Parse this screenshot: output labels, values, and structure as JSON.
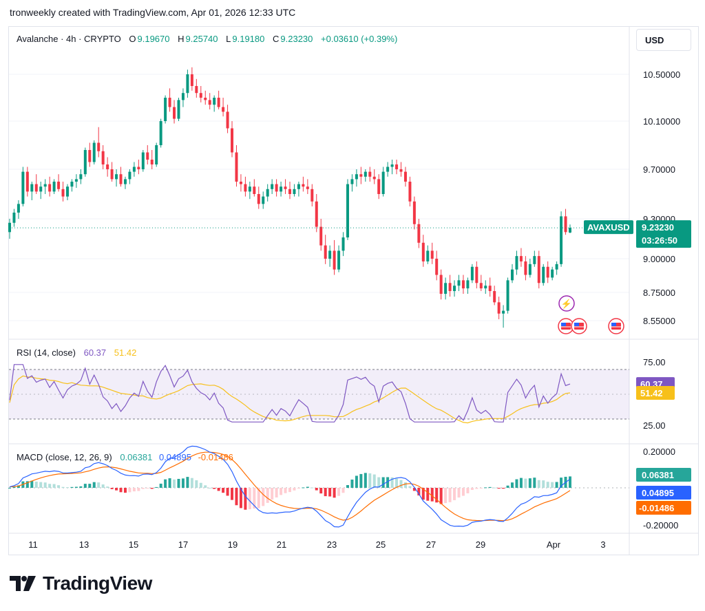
{
  "header": {
    "credit": "tronweekly created with TradingView.com, Apr 01, 2026 12:33 UTC"
  },
  "currency_button": "USD",
  "legend": {
    "symbol": "Avalanche · 4h · CRYPTO",
    "o_label": "O",
    "o": "9.19670",
    "h_label": "H",
    "h": "9.25740",
    "l_label": "L",
    "l": "9.19180",
    "c_label": "C",
    "c": "9.23230",
    "change": "+0.03610 (+0.39%)"
  },
  "rsi_legend": {
    "title": "RSI (14, close)",
    "rsi": "60.37",
    "ma": "51.42"
  },
  "macd_legend": {
    "title": "MACD (close, 12, 26, 9)",
    "hist": "0.06381",
    "macd": "0.04895",
    "signal": "-0.01486"
  },
  "price_tag": {
    "symbol": "AVAXUSD",
    "price": "9.23230",
    "countdown": "03:26:50"
  },
  "footer": {
    "brand": "TradingView"
  },
  "colors": {
    "up": "#089981",
    "down": "#f23645",
    "rsi": "#7e57c2",
    "rsi_ma": "#f7c01a",
    "macd": "#2962ff",
    "signal": "#ff6d00",
    "hist_up": "#26a69a",
    "hist_down": "#f23645",
    "hist_up_light": "#b2dfdb",
    "hist_down_light": "#ffcdd2"
  },
  "chart_data": {
    "type": "candlestick",
    "price_axis": {
      "ticks": [
        "10.50000",
        "10.10000",
        "9.70000",
        "9.30000",
        "9.00000",
        "8.75000",
        "8.55000"
      ],
      "tick_values": [
        10.5,
        10.1,
        9.7,
        9.3,
        9.0,
        8.75,
        8.55
      ]
    },
    "x_ticks": [
      "11",
      "13",
      "15",
      "17",
      "19",
      "21",
      "23",
      "25",
      "27",
      "29",
      "Apr",
      "3"
    ],
    "candles_ohlc": [
      [
        9.2,
        9.3,
        9.15,
        9.27
      ],
      [
        9.27,
        9.38,
        9.24,
        9.35
      ],
      [
        9.35,
        9.45,
        9.3,
        9.42
      ],
      [
        9.42,
        9.72,
        9.4,
        9.68
      ],
      [
        9.68,
        9.72,
        9.48,
        9.52
      ],
      [
        9.52,
        9.6,
        9.45,
        9.58
      ],
      [
        9.58,
        9.66,
        9.5,
        9.52
      ],
      [
        9.52,
        9.6,
        9.46,
        9.56
      ],
      [
        9.56,
        9.62,
        9.5,
        9.58
      ],
      [
        9.58,
        9.64,
        9.48,
        9.52
      ],
      [
        9.52,
        9.62,
        9.5,
        9.6
      ],
      [
        9.6,
        9.66,
        9.52,
        9.54
      ],
      [
        9.54,
        9.6,
        9.44,
        9.48
      ],
      [
        9.48,
        9.58,
        9.45,
        9.56
      ],
      [
        9.56,
        9.62,
        9.52,
        9.6
      ],
      [
        9.6,
        9.66,
        9.55,
        9.62
      ],
      [
        9.62,
        9.7,
        9.58,
        9.66
      ],
      [
        9.66,
        9.88,
        9.64,
        9.86
      ],
      [
        9.86,
        9.92,
        9.72,
        9.76
      ],
      [
        9.76,
        9.94,
        9.74,
        9.92
      ],
      [
        9.92,
        10.05,
        9.8,
        9.85
      ],
      [
        9.85,
        9.9,
        9.7,
        9.74
      ],
      [
        9.74,
        9.8,
        9.64,
        9.7
      ],
      [
        9.7,
        9.76,
        9.6,
        9.62
      ],
      [
        9.62,
        9.7,
        9.56,
        9.66
      ],
      [
        9.66,
        9.72,
        9.56,
        9.58
      ],
      [
        9.58,
        9.64,
        9.54,
        9.62
      ],
      [
        9.62,
        9.7,
        9.58,
        9.68
      ],
      [
        9.68,
        9.76,
        9.64,
        9.72
      ],
      [
        9.72,
        9.78,
        9.66,
        9.7
      ],
      [
        9.7,
        9.86,
        9.68,
        9.84
      ],
      [
        9.84,
        9.9,
        9.74,
        9.78
      ],
      [
        9.78,
        9.86,
        9.7,
        9.74
      ],
      [
        9.74,
        9.92,
        9.72,
        9.9
      ],
      [
        9.9,
        10.12,
        9.88,
        10.1
      ],
      [
        10.1,
        10.32,
        10.08,
        10.3
      ],
      [
        10.3,
        10.38,
        10.18,
        10.22
      ],
      [
        10.22,
        10.28,
        10.08,
        10.12
      ],
      [
        10.12,
        10.3,
        10.1,
        10.28
      ],
      [
        10.28,
        10.38,
        10.22,
        10.34
      ],
      [
        10.34,
        10.54,
        10.3,
        10.5
      ],
      [
        10.5,
        10.56,
        10.36,
        10.4
      ],
      [
        10.4,
        10.46,
        10.3,
        10.34
      ],
      [
        10.34,
        10.4,
        10.26,
        10.3
      ],
      [
        10.3,
        10.36,
        10.24,
        10.28
      ],
      [
        10.28,
        10.34,
        10.2,
        10.24
      ],
      [
        10.24,
        10.32,
        10.18,
        10.3
      ],
      [
        10.3,
        10.36,
        10.2,
        10.22
      ],
      [
        10.22,
        10.3,
        10.14,
        10.18
      ],
      [
        10.18,
        10.24,
        10.0,
        10.04
      ],
      [
        10.04,
        10.1,
        9.8,
        9.84
      ],
      [
        9.84,
        9.9,
        9.56,
        9.6
      ],
      [
        9.6,
        9.66,
        9.52,
        9.58
      ],
      [
        9.58,
        9.64,
        9.48,
        9.52
      ],
      [
        9.52,
        9.6,
        9.46,
        9.56
      ],
      [
        9.56,
        9.62,
        9.48,
        9.5
      ],
      [
        9.5,
        9.56,
        9.38,
        9.42
      ],
      [
        9.42,
        9.52,
        9.38,
        9.48
      ],
      [
        9.48,
        9.58,
        9.44,
        9.54
      ],
      [
        9.54,
        9.62,
        9.5,
        9.58
      ],
      [
        9.58,
        9.62,
        9.48,
        9.52
      ],
      [
        9.52,
        9.6,
        9.48,
        9.56
      ],
      [
        9.56,
        9.62,
        9.5,
        9.54
      ],
      [
        9.54,
        9.6,
        9.46,
        9.5
      ],
      [
        9.5,
        9.58,
        9.48,
        9.54
      ],
      [
        9.54,
        9.6,
        9.48,
        9.58
      ],
      [
        9.58,
        9.64,
        9.52,
        9.56
      ],
      [
        9.56,
        9.62,
        9.5,
        9.54
      ],
      [
        9.54,
        9.58,
        9.4,
        9.44
      ],
      [
        9.44,
        9.5,
        9.2,
        9.24
      ],
      [
        9.24,
        9.3,
        9.06,
        9.1
      ],
      [
        9.1,
        9.18,
        8.96,
        9.0
      ],
      [
        9.0,
        9.1,
        8.94,
        9.06
      ],
      [
        9.06,
        9.14,
        8.88,
        8.92
      ],
      [
        8.92,
        9.1,
        8.9,
        9.06
      ],
      [
        9.06,
        9.2,
        9.02,
        9.16
      ],
      [
        9.16,
        9.62,
        9.14,
        9.58
      ],
      [
        9.58,
        9.66,
        9.52,
        9.62
      ],
      [
        9.62,
        9.7,
        9.56,
        9.66
      ],
      [
        9.66,
        9.72,
        9.58,
        9.64
      ],
      [
        9.64,
        9.7,
        9.6,
        9.68
      ],
      [
        9.68,
        9.72,
        9.6,
        9.64
      ],
      [
        9.64,
        9.7,
        9.58,
        9.62
      ],
      [
        9.62,
        9.66,
        9.46,
        9.5
      ],
      [
        9.5,
        9.72,
        9.48,
        9.68
      ],
      [
        9.68,
        9.76,
        9.64,
        9.72
      ],
      [
        9.72,
        9.78,
        9.66,
        9.74
      ],
      [
        9.74,
        9.78,
        9.66,
        9.7
      ],
      [
        9.7,
        9.76,
        9.64,
        9.68
      ],
      [
        9.68,
        9.72,
        9.56,
        9.6
      ],
      [
        9.6,
        9.64,
        9.4,
        9.44
      ],
      [
        9.44,
        9.48,
        9.22,
        9.26
      ],
      [
        9.26,
        9.3,
        9.08,
        9.12
      ],
      [
        9.12,
        9.18,
        8.94,
        8.98
      ],
      [
        8.98,
        9.1,
        8.96,
        9.06
      ],
      [
        9.06,
        9.12,
        8.96,
        9.0
      ],
      [
        9.0,
        9.06,
        8.84,
        8.88
      ],
      [
        8.88,
        8.92,
        8.7,
        8.74
      ],
      [
        8.74,
        8.86,
        8.7,
        8.82
      ],
      [
        8.82,
        8.88,
        8.72,
        8.76
      ],
      [
        8.76,
        8.84,
        8.72,
        8.8
      ],
      [
        8.8,
        8.88,
        8.76,
        8.84
      ],
      [
        8.84,
        8.88,
        8.74,
        8.78
      ],
      [
        8.78,
        8.86,
        8.74,
        8.84
      ],
      [
        8.84,
        8.96,
        8.82,
        8.94
      ],
      [
        8.94,
        8.98,
        8.78,
        8.82
      ],
      [
        8.82,
        8.88,
        8.76,
        8.78
      ],
      [
        8.78,
        8.84,
        8.74,
        8.8
      ],
      [
        8.8,
        8.86,
        8.72,
        8.76
      ],
      [
        8.76,
        8.8,
        8.66,
        8.68
      ],
      [
        8.68,
        8.72,
        8.56,
        8.6
      ],
      [
        8.6,
        8.66,
        8.5,
        8.62
      ],
      [
        8.62,
        8.86,
        8.6,
        8.84
      ],
      [
        8.84,
        8.96,
        8.82,
        8.92
      ],
      [
        8.92,
        9.06,
        8.88,
        9.02
      ],
      [
        9.02,
        9.08,
        8.94,
        8.98
      ],
      [
        8.98,
        9.02,
        8.84,
        8.88
      ],
      [
        8.88,
        9.0,
        8.86,
        8.96
      ],
      [
        8.96,
        9.06,
        8.94,
        9.02
      ],
      [
        9.02,
        9.06,
        8.78,
        8.82
      ],
      [
        8.82,
        8.96,
        8.8,
        8.94
      ],
      [
        8.94,
        8.98,
        8.82,
        8.86
      ],
      [
        8.86,
        8.94,
        8.84,
        8.92
      ],
      [
        8.92,
        8.98,
        8.88,
        8.96
      ],
      [
        8.96,
        9.36,
        8.94,
        9.32
      ],
      [
        9.32,
        9.38,
        9.18,
        9.2
      ],
      [
        9.1967,
        9.2574,
        9.1918,
        9.2323
      ]
    ],
    "last_price": 9.2323,
    "rsi": {
      "name": "RSI (14, close)",
      "upper": 75.0,
      "lower": 25.0,
      "last_rsi": 60.37,
      "last_ma": 51.42
    },
    "macd": {
      "name": "MACD (close, 12, 26, 9)",
      "axis_ticks": [
        "0.20000",
        "-0.20000"
      ],
      "last_hist": 0.06381,
      "last_macd": 0.04895,
      "last_signal": -0.01486
    }
  }
}
